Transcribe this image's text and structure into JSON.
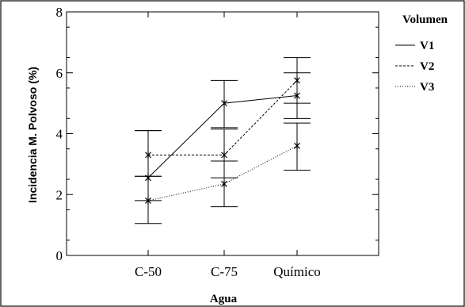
{
  "chart_data": {
    "type": "line",
    "xlabel": "Agua",
    "ylabel": "Incidencia M. Polvoso (%)",
    "categories": [
      "C-50",
      "C-75",
      "Químico"
    ],
    "ylim": [
      0,
      8
    ],
    "yticks": [
      "0",
      "2",
      "4",
      "6",
      "8"
    ],
    "grid": false,
    "legend": {
      "title": "Volumen",
      "position": "right"
    },
    "series": [
      {
        "name": "V1",
        "values": [
          2.55,
          5.0,
          5.25
        ],
        "lower": [
          1.8,
          4.2,
          4.5
        ],
        "upper": [
          4.1,
          5.75,
          6.0
        ],
        "line_style": "solid"
      },
      {
        "name": "V2",
        "values": [
          3.3,
          3.3,
          5.75
        ],
        "lower": [
          2.6,
          2.55,
          5.0
        ],
        "upper": [
          4.1,
          4.15,
          6.5
        ],
        "line_style": "dashed"
      },
      {
        "name": "V3",
        "values": [
          1.8,
          2.35,
          3.6
        ],
        "lower": [
          1.05,
          1.6,
          2.8
        ],
        "upper": [
          2.6,
          3.1,
          4.35
        ],
        "line_style": "dotted"
      }
    ]
  }
}
